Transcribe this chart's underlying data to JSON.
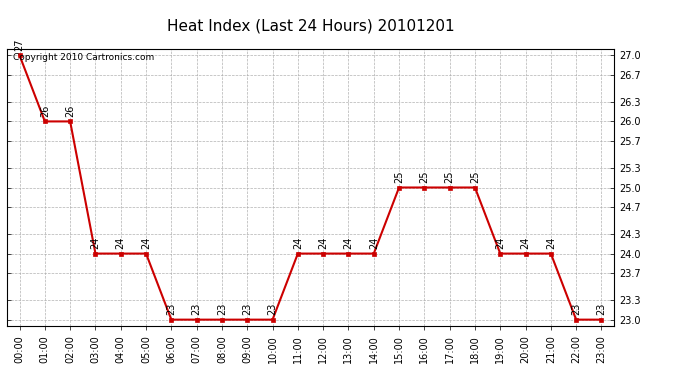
{
  "title": "Heat Index (Last 24 Hours) 20101201",
  "copyright": "Copyright 2010 Cartronics.com",
  "hours": [
    "00:00",
    "01:00",
    "02:00",
    "03:00",
    "04:00",
    "05:00",
    "06:00",
    "07:00",
    "08:00",
    "09:00",
    "10:00",
    "11:00",
    "12:00",
    "13:00",
    "14:00",
    "15:00",
    "16:00",
    "17:00",
    "18:00",
    "19:00",
    "20:00",
    "21:00",
    "22:00",
    "23:00"
  ],
  "values": [
    27.0,
    26.0,
    26.0,
    24.0,
    24.0,
    24.0,
    23.0,
    23.0,
    23.0,
    23.0,
    23.0,
    24.0,
    24.0,
    24.0,
    24.0,
    25.0,
    25.0,
    25.0,
    25.0,
    24.0,
    24.0,
    24.0,
    23.0,
    23.0
  ],
  "line_color": "#cc0000",
  "marker_color": "#cc0000",
  "bg_color": "#ffffff",
  "plot_bg_color": "#ffffff",
  "grid_color": "#aaaaaa",
  "text_color": "#000000",
  "ylim_min": 23.0,
  "ylim_max": 27.0,
  "yticks": [
    23.0,
    23.3,
    23.7,
    24.0,
    24.3,
    24.7,
    25.0,
    25.3,
    25.7,
    26.0,
    26.3,
    26.7,
    27.0
  ],
  "title_fontsize": 11,
  "label_fontsize": 7,
  "copyright_fontsize": 6.5,
  "marker_size": 3,
  "line_width": 1.5
}
